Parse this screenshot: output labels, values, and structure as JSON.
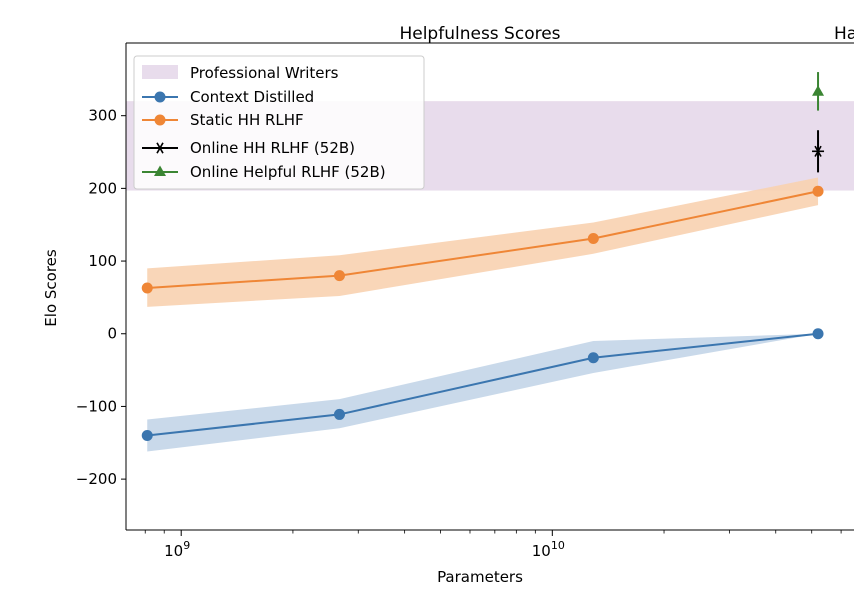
{
  "chart_data": {
    "type": "line",
    "title": "Helpfulness Scores",
    "clipped_title": "Ha",
    "xlabel": "Parameters",
    "ylabel": "Elo Scores",
    "x_scale": "log",
    "xlim": [
      710000000.0,
      65000000000.0
    ],
    "ylim": [
      -270,
      400
    ],
    "y_ticks": [
      {
        "value": -200,
        "label": "−200"
      },
      {
        "value": -100,
        "label": "−100"
      },
      {
        "value": 0,
        "label": "0"
      },
      {
        "value": 100,
        "label": "100"
      },
      {
        "value": 200,
        "label": "200"
      },
      {
        "value": 300,
        "label": "300"
      }
    ],
    "x_ticks": [
      {
        "value": 1000000000.0,
        "base": "10",
        "exp": "9"
      },
      {
        "value": 10000000000.0,
        "base": "10",
        "exp": "10"
      }
    ],
    "legend": {
      "position": "top-left",
      "entries": [
        {
          "name": "Professional Writers",
          "kind": "band"
        },
        {
          "name": "Context Distilled",
          "kind": "line-circle"
        },
        {
          "name": "Static HH RLHF",
          "kind": "line-circle"
        },
        {
          "name": "Online HH RLHF (52B)",
          "kind": "star"
        },
        {
          "name": "Online Helpful RLHF (52B)",
          "kind": "triangle"
        }
      ]
    },
    "band": {
      "name": "Professional Writers",
      "y_low": 197,
      "y_high": 320,
      "color": "#e8dcec"
    },
    "series": [
      {
        "name": "Context Distilled",
        "color": "#3b76af",
        "fill": "#c3d5e8",
        "x": [
          810000000.0,
          2670000000.0,
          12900000000.0,
          52000000000.0
        ],
        "y": [
          -140,
          -111,
          -33,
          0
        ],
        "y_low": [
          -162,
          -130,
          -54,
          0
        ],
        "y_high": [
          -118,
          -90,
          -10,
          0
        ]
      },
      {
        "name": "Static HH RLHF",
        "color": "#ef8636",
        "fill": "#f8d1b0",
        "x": [
          810000000.0,
          2670000000.0,
          12900000000.0,
          52000000000.0
        ],
        "y": [
          63,
          80,
          131,
          196
        ],
        "y_low": [
          37,
          52,
          110,
          177
        ],
        "y_high": [
          90,
          108,
          153,
          215
        ]
      }
    ],
    "points": [
      {
        "name": "Online HH RLHF (52B)",
        "marker": "star",
        "color": "#000000",
        "x": 52000000000.0,
        "y": 251,
        "y_low": 222,
        "y_high": 280
      },
      {
        "name": "Online Helpful RLHF (52B)",
        "marker": "triangle",
        "color": "#3b8533",
        "x": 52000000000.0,
        "y": 333,
        "y_low": 307,
        "y_high": 360
      }
    ]
  }
}
